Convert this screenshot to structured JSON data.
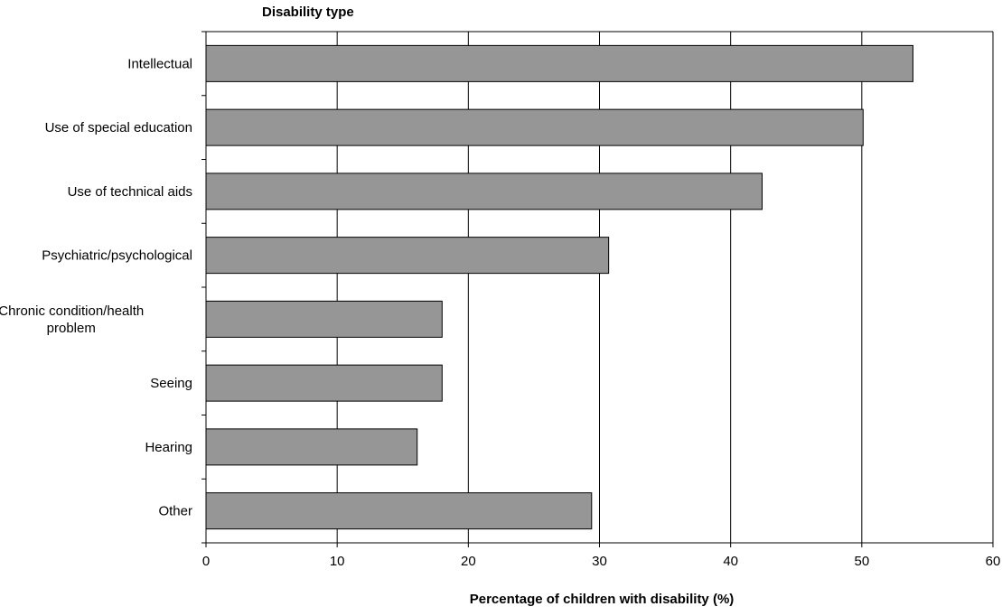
{
  "chart_data": {
    "type": "bar",
    "orientation": "horizontal",
    "title": "",
    "ylabel": "Disability type",
    "xlabel": "Percentage of children with disability (%)",
    "categories": [
      "Intellectual",
      "Use of special education",
      "Use of technical aids",
      "Psychiatric/psychological",
      "Chronic condition/health problem",
      "Seeing",
      "Hearing",
      "Other"
    ],
    "category_label_lines": [
      [
        "Intellectual"
      ],
      [
        "Use of special education"
      ],
      [
        "Use of technical aids"
      ],
      [
        "Psychiatric/psychological"
      ],
      [
        "Chronic condition/health",
        "problem"
      ],
      [
        "Seeing"
      ],
      [
        "Hearing"
      ],
      [
        "Other"
      ]
    ],
    "values": [
      53.9,
      50.1,
      42.4,
      30.7,
      18.0,
      18.0,
      16.1,
      29.4
    ],
    "xlim": [
      0,
      60
    ],
    "xticks": [
      0,
      10,
      20,
      30,
      40,
      50,
      60
    ],
    "grid": "vertical",
    "legend": "none",
    "colors": {
      "bar_fill": "#969696",
      "bar_stroke": "#000000",
      "gridline": "#000000",
      "axis": "#000000"
    }
  }
}
